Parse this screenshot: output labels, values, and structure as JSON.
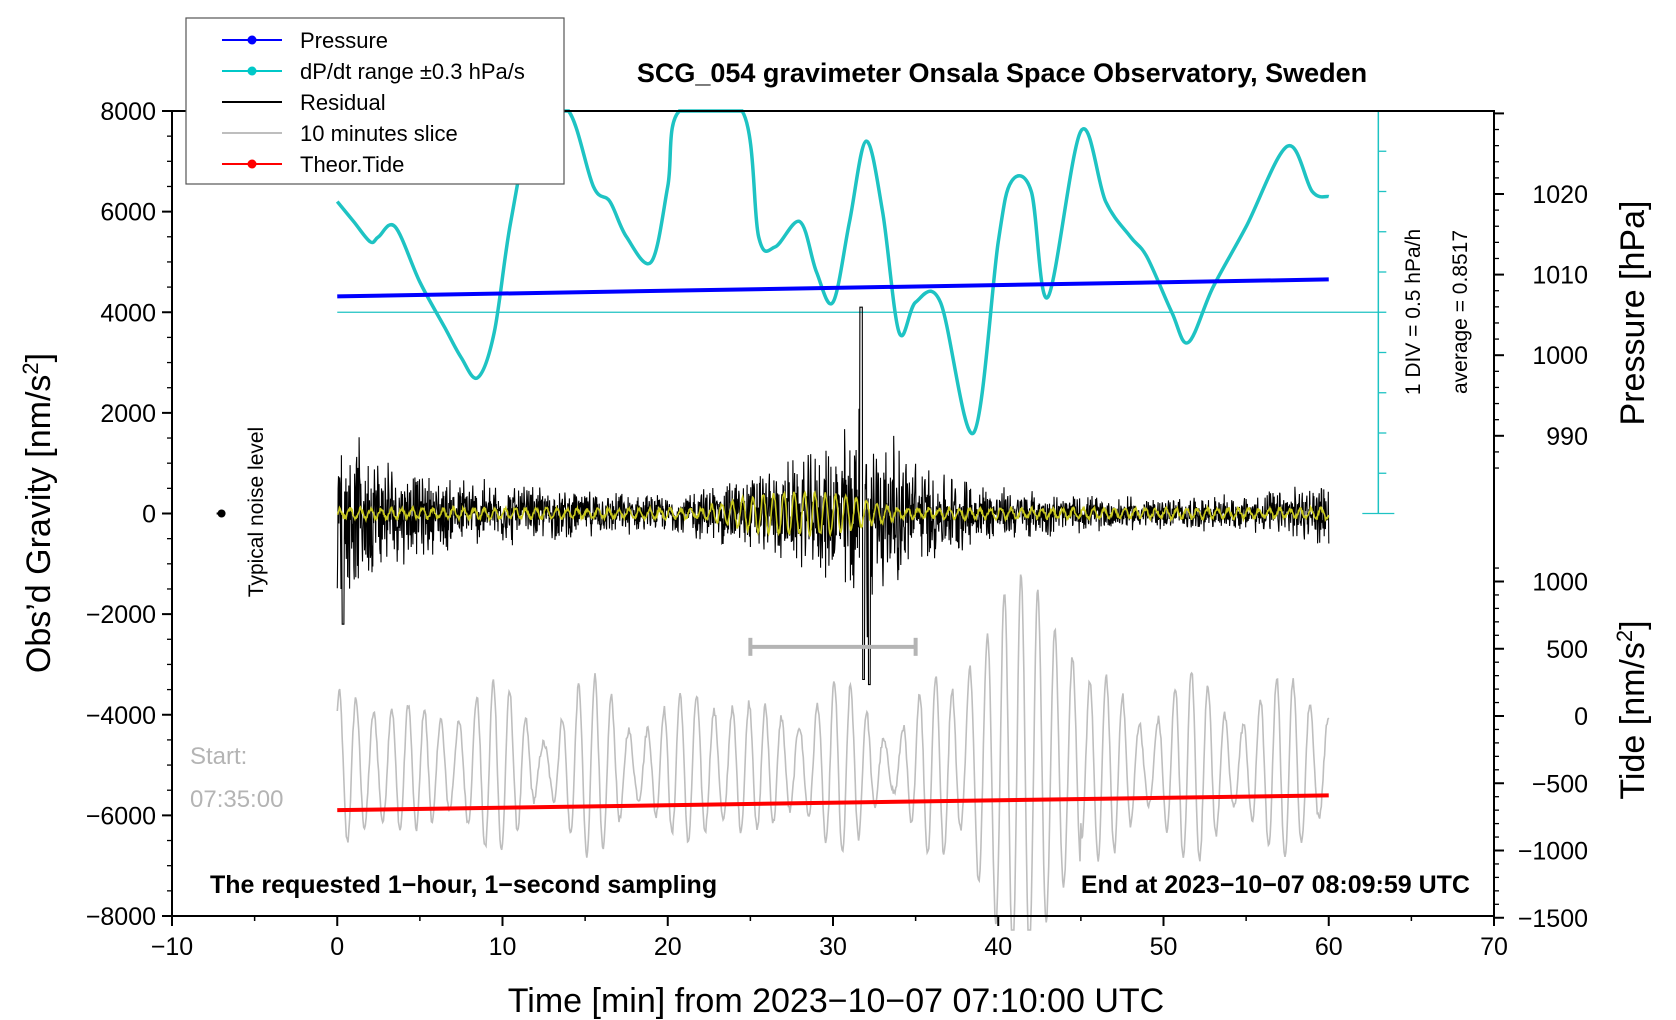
{
  "chart_data": {
    "type": "line",
    "title": "SCG_054 gravimeter Onsala Space Observatory, Sweden",
    "xlabel": "Time [min] from 2023−10−07 07:10:00 UTC",
    "ylabel_left_main": "Obs’d Gravity [nm/s",
    "ylabel_left_sup": "2",
    "ylabel_left_end": "]",
    "ylabel_right_top": "Pressure [hPa]",
    "ylabel_right_bottom_main": "Tide [nm/s",
    "ylabel_right_bottom_sup": "2",
    "ylabel_right_bottom_end": "]",
    "xlim": [
      -10,
      70
    ],
    "ylim": [
      -8000,
      8000
    ],
    "pressure_axis_range": [
      960,
      1030
    ],
    "tide_axis_range": [
      -1500,
      1300
    ],
    "x_ticks": [
      -10,
      0,
      10,
      20,
      30,
      40,
      50,
      60,
      70
    ],
    "x_tick_labels": [
      "−10",
      "0",
      "10",
      "20",
      "30",
      "40",
      "50",
      "60",
      "70"
    ],
    "y_ticks": [
      -8000,
      -6000,
      -4000,
      -2000,
      0,
      2000,
      4000,
      6000,
      8000
    ],
    "y_tick_labels": [
      "−8000",
      "−6000",
      "−4000",
      "−2000",
      "0",
      "2000",
      "4000",
      "6000",
      "8000"
    ],
    "pressure_ticks": [
      990,
      1000,
      1010,
      1020
    ],
    "pressure_tick_labels": [
      "990",
      "1000",
      "1010",
      "1020"
    ],
    "tide_ticks": [
      -1500,
      -1000,
      -500,
      0,
      500,
      1000
    ],
    "tide_tick_labels": [
      "−1500",
      "−1000",
      "−500",
      "0",
      "500",
      "1000"
    ],
    "legend": [
      {
        "label": "Pressure",
        "color": "#0000ff",
        "marker": true
      },
      {
        "label": "dP/dt range ±0.3 hPa/s",
        "color": "#00c8c8",
        "marker": true
      },
      {
        "label": "Residual",
        "color": "#000000",
        "marker": false
      },
      {
        "label": "10 minutes slice",
        "color": "#bebebe",
        "marker": false
      },
      {
        "label": "Theor.Tide",
        "color": "#ff0000",
        "marker": true
      }
    ],
    "colors": {
      "pressure": "#0000ff",
      "dpdt": "#1ec3c3",
      "residual": "#000000",
      "filtered": "#c8c81e",
      "slice": "#bebebe",
      "tide": "#ff0000"
    },
    "series": [
      {
        "name": "Pressure",
        "x": [
          0,
          60
        ],
        "values": [
          1007.3,
          1009.4
        ]
      },
      {
        "name": "Theor.Tide",
        "x": [
          0,
          60
        ],
        "values": [
          -700,
          -590
        ]
      },
      {
        "name": "dP/dt range ±0.3 hPa/s",
        "x": [
          0,
          1,
          2,
          2.5,
          3.5,
          5,
          6.5,
          7.5,
          8.5,
          9.5,
          10.5,
          12,
          14,
          15.5,
          16.5,
          17.5,
          19,
          20,
          20.7,
          24.5,
          25.5,
          26.5,
          28,
          29,
          30,
          31,
          32,
          33,
          34,
          35,
          36.5,
          38.5,
          40,
          40.8,
          42,
          43,
          45,
          46.5,
          48,
          49,
          50.5,
          51.5,
          53,
          55,
          57.5,
          59,
          60
        ],
        "values": [
          6200,
          5800,
          5400,
          5500,
          5700,
          4600,
          3700,
          3100,
          2700,
          3600,
          5800,
          8200,
          8000,
          6500,
          6200,
          5500,
          5000,
          6500,
          8200,
          8200,
          5500,
          5300,
          5800,
          4800,
          4200,
          5800,
          7400,
          6000,
          3600,
          4200,
          4200,
          1600,
          5400,
          6600,
          6400,
          4300,
          7600,
          6200,
          5500,
          5100,
          4000,
          3400,
          4500,
          5700,
          7300,
          6400,
          6300
        ]
      },
      {
        "name": "Residual (envelope)",
        "x": [
          0,
          5,
          10,
          15,
          20,
          25,
          28,
          30,
          31,
          32,
          33,
          35,
          37,
          40,
          45,
          50,
          55,
          60
        ],
        "values": [
          1800,
          900,
          700,
          500,
          400,
          900,
          1200,
          1500,
          2200,
          2600,
          1900,
          1200,
          900,
          600,
          400,
          350,
          400,
          700
        ]
      }
    ],
    "dpdt_reference_line": 4000,
    "scale_bar_label": "1 DIV = 0.5 hPa/h",
    "average_label": "average = 0.8517",
    "noise_label": "Typical noise level",
    "slice_range_minutes": [
      25,
      35
    ],
    "start_label_1": "Start:",
    "start_label_2": "07:35:00",
    "bottom_left_label": "The requested 1−hour, 1−second sampling",
    "bottom_right_label": "End at 2023−10−07 08:09:59 UTC"
  }
}
